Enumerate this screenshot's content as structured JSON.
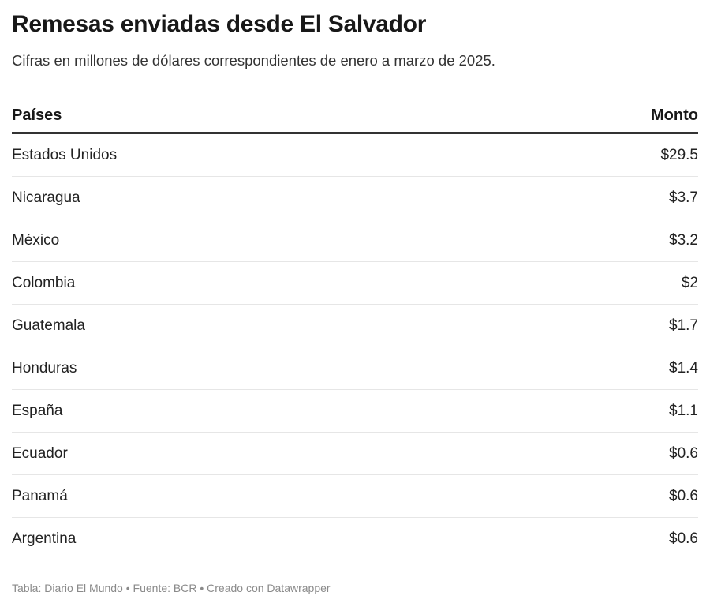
{
  "title": "Remesas enviadas desde El Salvador",
  "subtitle": "Cifras en millones de dólares correspondientes de enero a marzo de 2025.",
  "chart_data": {
    "type": "table",
    "title": "Remesas enviadas desde El Salvador",
    "columns": [
      "Países",
      "Monto"
    ],
    "rows": [
      [
        "Estados Unidos",
        "$29.5"
      ],
      [
        "Nicaragua",
        "$3.7"
      ],
      [
        "México",
        "$3.2"
      ],
      [
        "Colombia",
        "$2"
      ],
      [
        "Guatemala",
        "$1.7"
      ],
      [
        "Honduras",
        "$1.4"
      ],
      [
        "España",
        "$1.1"
      ],
      [
        "Ecuador",
        "$0.6"
      ],
      [
        "Panamá",
        "$0.6"
      ],
      [
        "Argentina",
        "$0.6"
      ]
    ]
  },
  "footer": "Tabla: Diario El Mundo • Fuente: BCR • Creado con Datawrapper"
}
